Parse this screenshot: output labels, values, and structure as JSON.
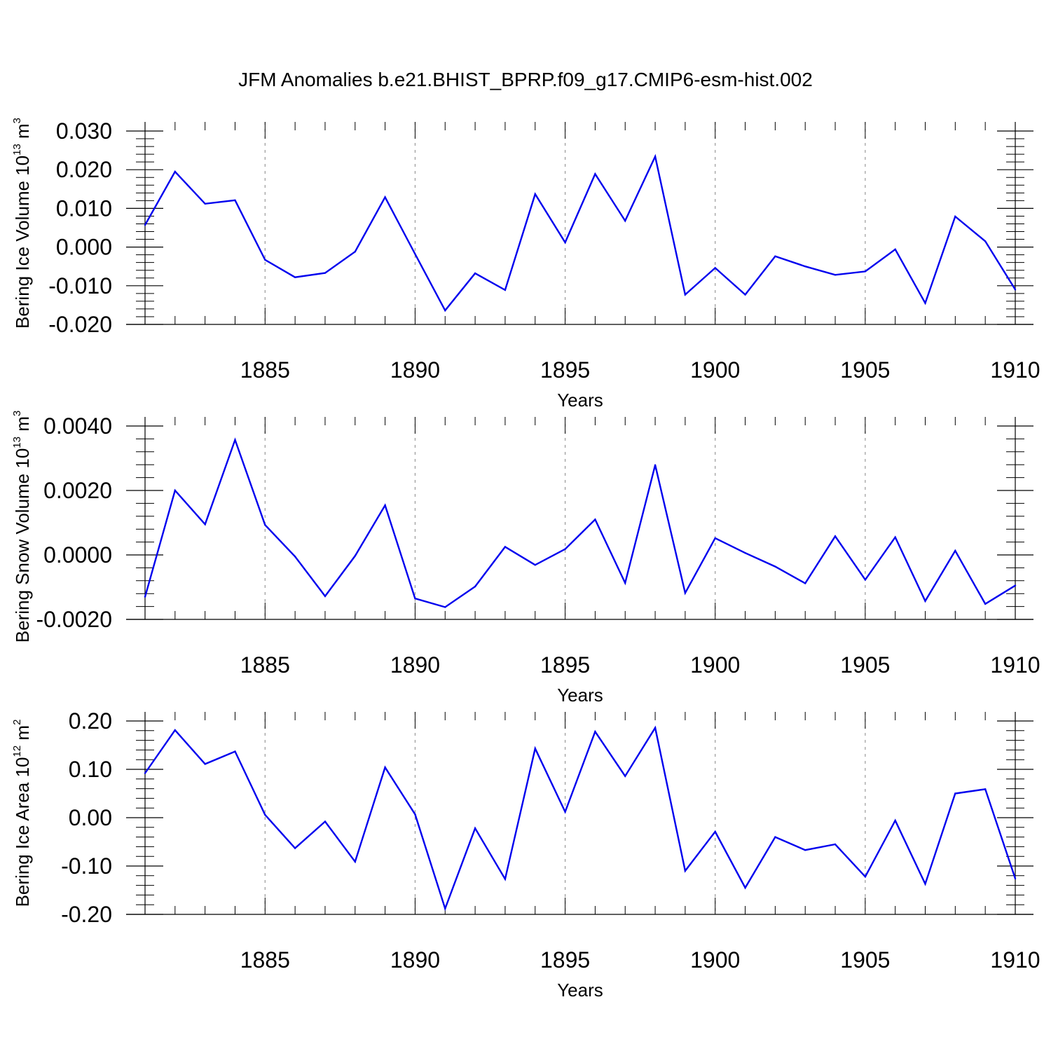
{
  "title": "JFM Anomalies b.e21.BHIST_BPRP.f09_g17.CMIP6-esm-hist.002",
  "line_color": "#0000ee",
  "grid_color": "#999999",
  "chart_data": [
    {
      "type": "line",
      "ylabel_main": "Bering Ice Volume 10",
      "ylabel_exp": "13",
      "ylabel_unit": " m",
      "ylabel_unit_exp": "3",
      "xlabel": "Years",
      "xlim": [
        1881,
        1910
      ],
      "ylim": [
        -0.02,
        0.03
      ],
      "x_ticks": [
        "1885",
        "1890",
        "1895",
        "1900",
        "1905",
        "1910"
      ],
      "y_ticks": [
        "0.030",
        "0.020",
        "0.010",
        "0.000",
        "-0.010",
        "-0.020"
      ],
      "x": [
        1881,
        1882,
        1883,
        1884,
        1885,
        1886,
        1887,
        1888,
        1889,
        1890,
        1891,
        1892,
        1893,
        1894,
        1895,
        1896,
        1897,
        1898,
        1899,
        1900,
        1901,
        1902,
        1903,
        1904,
        1905,
        1906,
        1907,
        1908,
        1909,
        1910
      ],
      "values": [
        0.0057,
        0.0195,
        0.0112,
        0.0121,
        -0.0033,
        -0.0078,
        -0.0067,
        -0.0012,
        0.0129,
        -0.0018,
        -0.0164,
        -0.0068,
        -0.0111,
        0.0137,
        0.0012,
        0.0189,
        0.0068,
        0.0234,
        -0.0123,
        -0.0054,
        -0.0123,
        -0.0024,
        -0.005,
        -0.0072,
        -0.0063,
        -0.0006,
        -0.0145,
        0.0079,
        0.0015,
        -0.011
      ]
    },
    {
      "type": "line",
      "ylabel_main": "Bering Snow Volume 10",
      "ylabel_exp": "13",
      "ylabel_unit": " m",
      "ylabel_unit_exp": "3",
      "xlabel": "Years",
      "xlim": [
        1881,
        1910
      ],
      "ylim": [
        -0.002,
        0.004
      ],
      "x_ticks": [
        "1885",
        "1890",
        "1895",
        "1900",
        "1905",
        "1910"
      ],
      "y_ticks": [
        "0.0040",
        "0.0020",
        "0.0000",
        "-0.0020"
      ],
      "x": [
        1881,
        1882,
        1883,
        1884,
        1885,
        1886,
        1887,
        1888,
        1889,
        1890,
        1891,
        1892,
        1893,
        1894,
        1895,
        1896,
        1897,
        1898,
        1899,
        1900,
        1901,
        1902,
        1903,
        1904,
        1905,
        1906,
        1907,
        1908,
        1909,
        1910
      ],
      "values": [
        -0.0013,
        0.002,
        0.00095,
        0.00357,
        0.00093,
        -5e-05,
        -0.00128,
        -3e-05,
        0.00154,
        -0.00135,
        -0.00162,
        -0.00098,
        0.00025,
        -0.00031,
        0.00018,
        0.0011,
        -0.00087,
        0.00279,
        -0.00118,
        0.00052,
        6e-05,
        -0.00036,
        -0.00088,
        0.00058,
        -0.00077,
        0.00055,
        -0.00143,
        0.00013,
        -0.00152,
        -0.00095
      ]
    },
    {
      "type": "line",
      "ylabel_main": "Bering Ice Area 10",
      "ylabel_exp": "12",
      "ylabel_unit": " m",
      "ylabel_unit_exp": "2",
      "xlabel": "Years",
      "xlim": [
        1881,
        1910
      ],
      "ylim": [
        -0.2,
        0.2
      ],
      "x_ticks": [
        "1885",
        "1890",
        "1895",
        "1900",
        "1905",
        "1910"
      ],
      "y_ticks": [
        "0.20",
        "0.10",
        "0.00",
        "-0.10",
        "-0.20"
      ],
      "x": [
        1881,
        1882,
        1883,
        1884,
        1885,
        1886,
        1887,
        1888,
        1889,
        1890,
        1891,
        1892,
        1893,
        1894,
        1895,
        1896,
        1897,
        1898,
        1899,
        1900,
        1901,
        1902,
        1903,
        1904,
        1905,
        1906,
        1907,
        1908,
        1909,
        1910
      ],
      "values": [
        0.092,
        0.181,
        0.111,
        0.137,
        0.006,
        -0.063,
        -0.008,
        -0.091,
        0.104,
        0.007,
        -0.188,
        -0.022,
        -0.127,
        0.143,
        0.012,
        0.178,
        0.086,
        0.186,
        -0.11,
        -0.029,
        -0.145,
        -0.04,
        -0.067,
        -0.055,
        -0.122,
        -0.006,
        -0.137,
        0.05,
        0.059,
        -0.126
      ]
    }
  ]
}
